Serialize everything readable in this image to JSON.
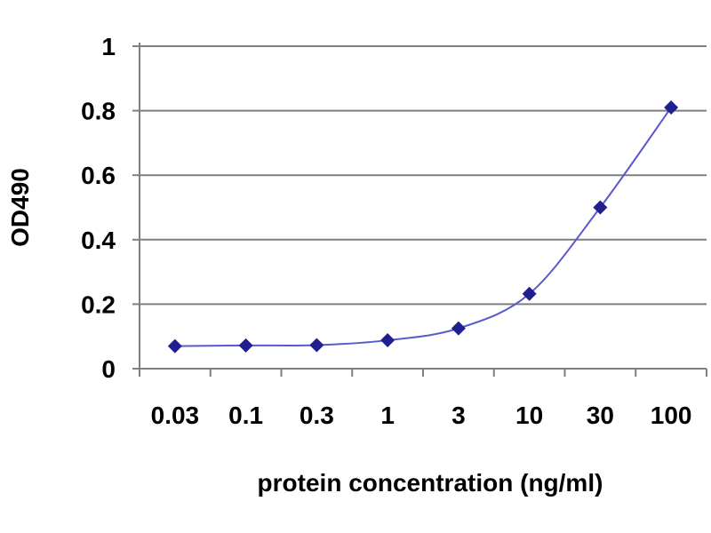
{
  "chart_data": {
    "type": "line",
    "title": "",
    "xlabel": "protein concentration (ng/ml)",
    "ylabel": "OD490",
    "categories": [
      "0.03",
      "0.1",
      "0.3",
      "1",
      "3",
      "10",
      "30",
      "100"
    ],
    "series": [
      {
        "values": [
          0.07,
          0.072,
          0.073,
          0.088,
          0.125,
          0.232,
          0.5,
          0.81
        ],
        "color": "#1f1f8f"
      }
    ],
    "ylim": [
      0,
      1
    ],
    "yticks": [
      "0",
      "0.2",
      "0.4",
      "0.6",
      "0.8",
      "1"
    ],
    "grid": "horizontal",
    "line_color": "#5a5acc",
    "marker": "diamond"
  }
}
